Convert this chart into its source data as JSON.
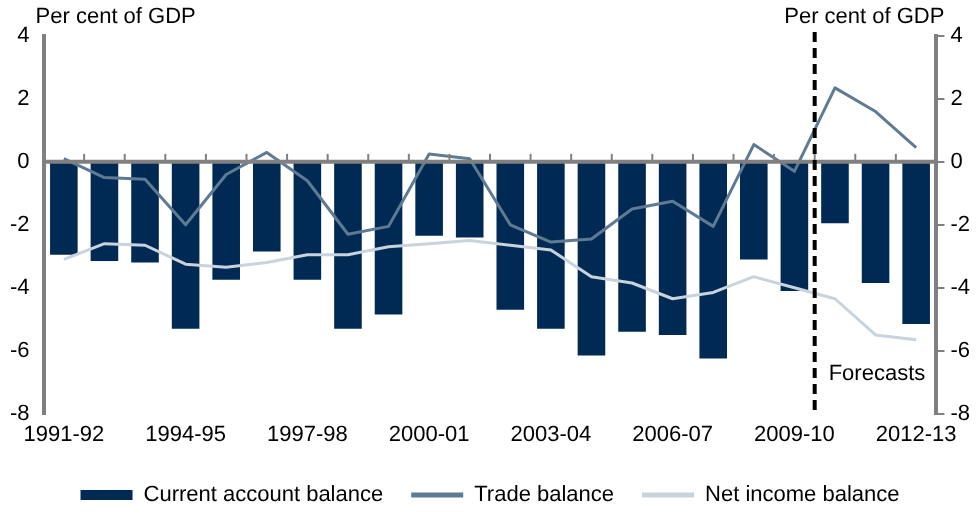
{
  "chart_data": {
    "type": "bar",
    "ylabel": "Per cent of GDP",
    "y2label": "Per cent of GDP",
    "categories": [
      "1991-92",
      null,
      null,
      "1994-95",
      null,
      null,
      "1997-98",
      null,
      null,
      "2000-01",
      null,
      null,
      "2003-04",
      null,
      null,
      "2006-07",
      null,
      null,
      "2009-10",
      null,
      null,
      "2012-13"
    ],
    "series": [
      {
        "name": "Current account balance",
        "color": "#002a54",
        "values": [
          -2.95,
          -3.15,
          -3.2,
          -5.3,
          -3.75,
          -2.85,
          -3.75,
          -5.3,
          -4.85,
          -2.35,
          -2.4,
          -4.7,
          -5.3,
          -6.15,
          -5.4,
          -5.5,
          -6.25,
          -3.1,
          -4.1,
          -1.95,
          -3.85,
          -5.15
        ]
      },
      {
        "name": "Trade balance",
        "type": "line",
        "color": "#5f7a93",
        "values": [
          0.1,
          -0.5,
          -0.55,
          -2.0,
          -0.4,
          0.3,
          -0.6,
          -2.3,
          -2.05,
          0.25,
          0.1,
          -2.0,
          -2.55,
          -2.45,
          -1.5,
          -1.25,
          -2.05,
          0.55,
          -0.3,
          2.35,
          1.6,
          0.45
        ]
      },
      {
        "name": "Net income balance",
        "type": "line",
        "color": "#c8d3de",
        "values": [
          -3.1,
          -2.6,
          -2.65,
          -3.25,
          -3.35,
          -3.2,
          -2.95,
          -2.95,
          -2.7,
          -2.6,
          -2.5,
          -2.65,
          -2.8,
          -3.65,
          -3.85,
          -4.35,
          -4.15,
          -3.65,
          -4.0,
          -4.35,
          -5.5,
          -5.65
        ]
      }
    ],
    "ylim": [
      -8,
      4
    ],
    "yticks": [
      -8,
      -6,
      -4,
      -2,
      0,
      2,
      4
    ],
    "y2lim": [
      -8,
      4
    ],
    "y2ticks": [
      -8,
      -6,
      -4,
      -2,
      0,
      2,
      4
    ],
    "ref_lines": [
      {
        "axis": "x",
        "value": "2009-10",
        "label": "Forecasts",
        "color": "#000000",
        "line_style": "dashed"
      }
    ],
    "grid": false,
    "legend": "bottom",
    "marker": "none",
    "line_style": "solid"
  }
}
